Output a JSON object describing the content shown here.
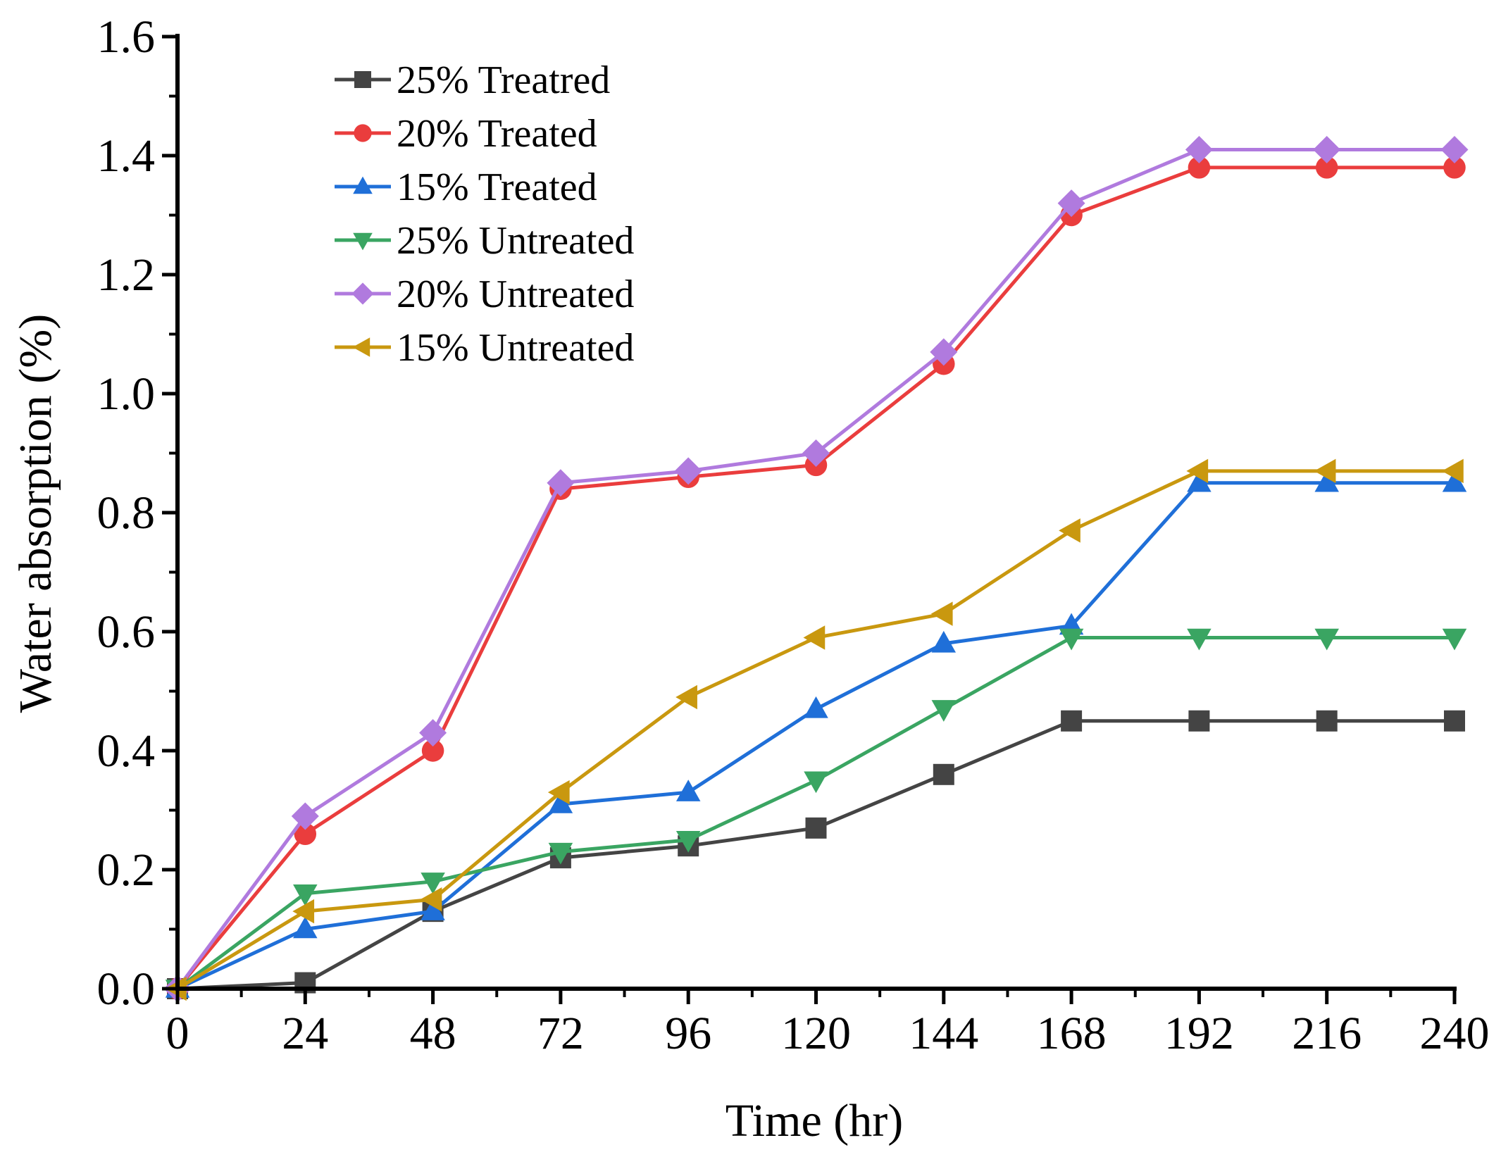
{
  "chart_data": {
    "type": "line",
    "title": "",
    "xlabel": "Time (hr)",
    "ylabel": "Water absorption (%)",
    "x": [
      0,
      24,
      48,
      72,
      96,
      120,
      144,
      168,
      192,
      216,
      240
    ],
    "xlim": [
      0,
      240
    ],
    "ylim": [
      0.0,
      1.6
    ],
    "x_ticks": [
      "0",
      "24",
      "48",
      "72",
      "96",
      "120",
      "144",
      "168",
      "192",
      "216",
      "240"
    ],
    "y_ticks": [
      "0.0",
      "0.2",
      "0.4",
      "0.6",
      "0.8",
      "1.0",
      "1.2",
      "1.4",
      "1.6"
    ],
    "grid": false,
    "legend_position": "top-left",
    "series": [
      {
        "name": "25% Treatred",
        "color": "#444444",
        "marker": "square",
        "values": [
          0.0,
          0.01,
          0.13,
          0.22,
          0.24,
          0.27,
          0.36,
          0.45,
          0.45,
          0.45,
          0.45
        ]
      },
      {
        "name": "20% Treated",
        "color": "#ea3d3d",
        "marker": "circle",
        "values": [
          0.0,
          0.26,
          0.4,
          0.84,
          0.86,
          0.88,
          1.05,
          1.3,
          1.38,
          1.38,
          1.38
        ]
      },
      {
        "name": "15% Treated",
        "color": "#1f6fd8",
        "marker": "triangle-up",
        "values": [
          0.0,
          0.1,
          0.13,
          0.31,
          0.33,
          0.47,
          0.58,
          0.61,
          0.85,
          0.85,
          0.85
        ]
      },
      {
        "name": "25% Untreated",
        "color": "#3aa562",
        "marker": "triangle-down",
        "values": [
          0.0,
          0.16,
          0.18,
          0.23,
          0.25,
          0.35,
          0.47,
          0.59,
          0.59,
          0.59,
          0.59
        ]
      },
      {
        "name": "20% Untreated",
        "color": "#b07ade",
        "marker": "diamond",
        "values": [
          0.0,
          0.29,
          0.43,
          0.85,
          0.87,
          0.9,
          1.07,
          1.32,
          1.41,
          1.41,
          1.41
        ]
      },
      {
        "name": "15% Untreated",
        "color": "#c9980f",
        "marker": "triangle-left",
        "values": [
          0.0,
          0.13,
          0.15,
          0.33,
          0.49,
          0.59,
          0.63,
          0.77,
          0.87,
          0.87,
          0.87
        ]
      }
    ]
  }
}
